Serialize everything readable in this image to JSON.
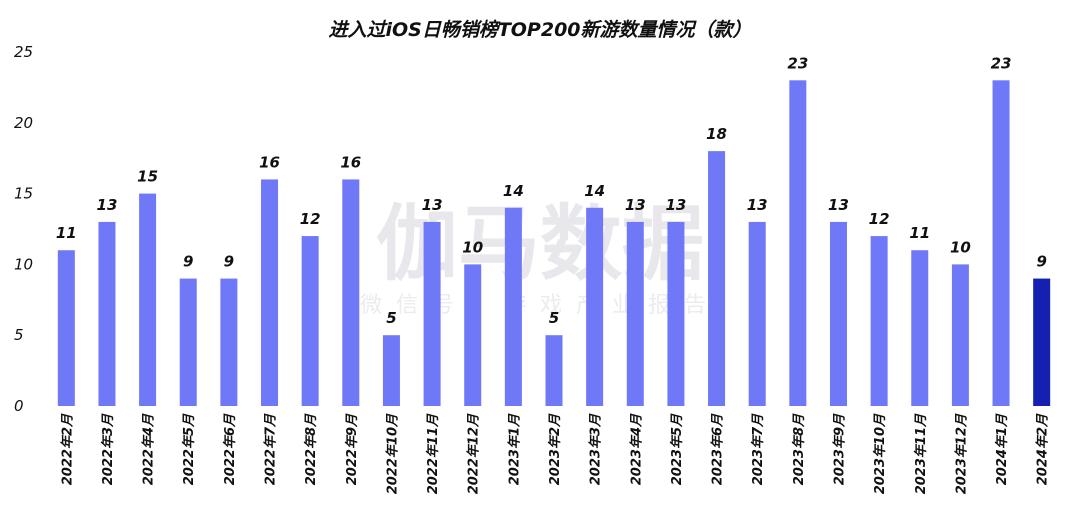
{
  "watermark": {
    "main": "伽马数据",
    "sub": "微信号：游戏产业报告"
  },
  "chart_data": {
    "type": "bar",
    "title": "进入过iOS日畅销榜TOP200新游数量情况（款）",
    "xlabel": "",
    "ylabel": "",
    "ylim": [
      0,
      25
    ],
    "yticks": [
      0,
      5,
      10,
      15,
      20,
      25
    ],
    "grid": false,
    "legend": "none",
    "categories": [
      "2022年2月",
      "2022年3月",
      "2022年4月",
      "2022年5月",
      "2022年6月",
      "2022年7月",
      "2022年8月",
      "2022年9月",
      "2022年10月",
      "2022年11月",
      "2022年12月",
      "2023年1月",
      "2023年2月",
      "2023年3月",
      "2023年4月",
      "2023年5月",
      "2023年6月",
      "2023年7月",
      "2023年8月",
      "2023年9月",
      "2023年10月",
      "2023年11月",
      "2023年12月",
      "2024年1月",
      "2024年2月"
    ],
    "values": [
      11,
      13,
      15,
      9,
      9,
      16,
      12,
      16,
      5,
      13,
      10,
      14,
      5,
      14,
      13,
      13,
      18,
      13,
      23,
      13,
      12,
      11,
      10,
      23,
      9
    ],
    "colors": {
      "bar": "#6f78f7",
      "highlight": "#1520b0",
      "highlight_category": "2024年2月"
    }
  }
}
